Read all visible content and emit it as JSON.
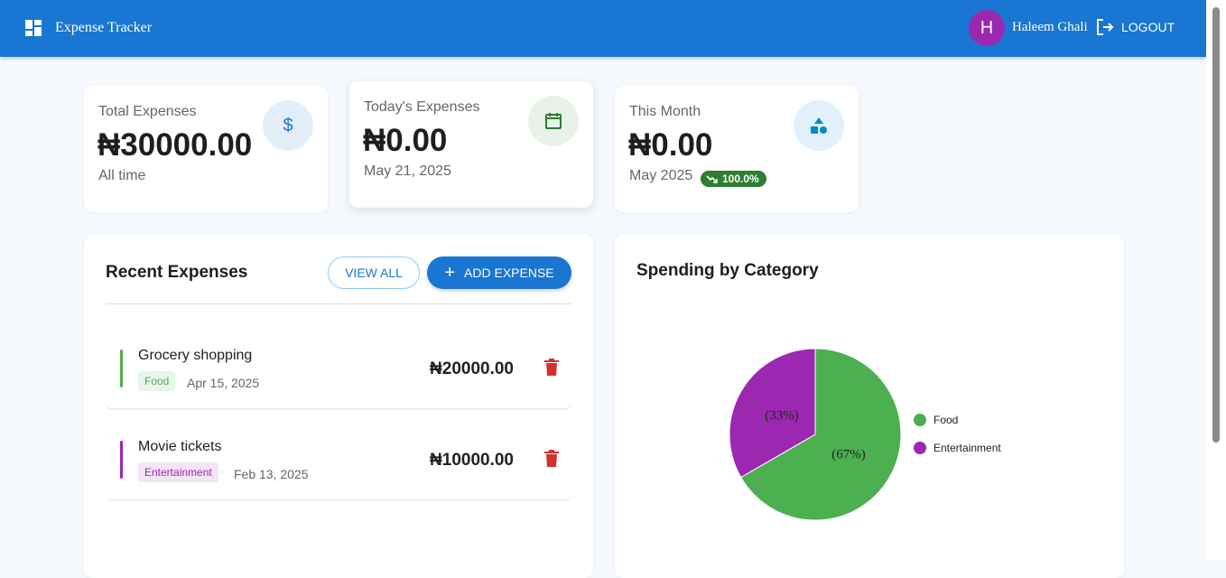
{
  "app": {
    "title": "Expense Tracker",
    "icon": "dashboard-icon"
  },
  "user": {
    "initial": "H",
    "name": "Haleem Ghali",
    "logout_label": "LOGOUT",
    "avatar_color": "#9c27b0"
  },
  "stats": [
    {
      "label": "Total Expenses",
      "value": "₦30000.00",
      "sub": "All time",
      "icon": "dollar-icon"
    },
    {
      "label": "Today's Expenses",
      "value": "₦0.00",
      "sub": "May 21, 2025",
      "icon": "calendar-icon"
    },
    {
      "label": "This Month",
      "value": "₦0.00",
      "sub": "May 2025",
      "icon": "category-icon",
      "badge": "100.0%",
      "badge_icon": "trending-down-icon"
    }
  ],
  "recent": {
    "title": "Recent Expenses",
    "view_all": "VIEW ALL",
    "add": "ADD EXPENSE",
    "items": [
      {
        "name": "Grocery shopping",
        "category": "Food",
        "date": "Apr 15, 2025",
        "amount": "₦20000.00",
        "color": "#4caf50"
      },
      {
        "name": "Movie tickets",
        "category": "Entertainment",
        "date": "Feb 13, 2025",
        "amount": "₦10000.00",
        "color": "#9c27b0"
      }
    ]
  },
  "chart_data": {
    "type": "pie",
    "title": "Spending by Category",
    "legend": "right",
    "categories": [
      "Food",
      "Entertainment"
    ],
    "values": [
      20000,
      10000
    ],
    "labels": [
      "(67%)",
      "(33%)"
    ],
    "colors": [
      "#4caf50",
      "#9c27b0"
    ]
  }
}
